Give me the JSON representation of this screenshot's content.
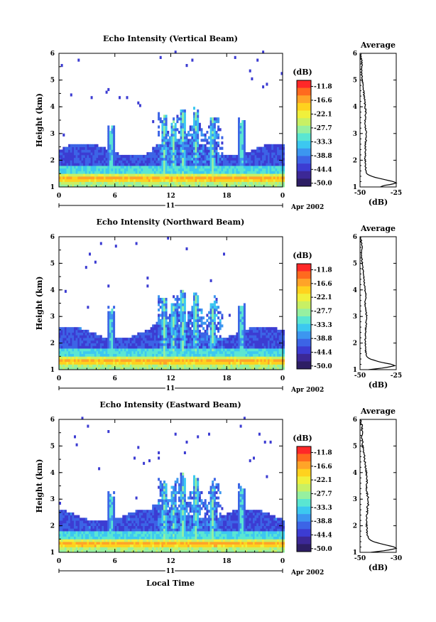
{
  "figure": {
    "xlabel": "Local Time",
    "date_label": "Apr 2002",
    "day_label": "11"
  },
  "chart_data": [
    {
      "type": "heatmap",
      "title": "Echo Intensity (Vertical Beam)",
      "ylabel": "Height (km)",
      "xlim": [
        0,
        24
      ],
      "ylim": [
        1,
        6
      ],
      "x_ticks": [
        "0",
        "6",
        "12",
        "18",
        "0"
      ],
      "x_tick_values": [
        0,
        6,
        12,
        18,
        24
      ],
      "y_ticks": [
        "1",
        "2",
        "3",
        "4",
        "5",
        "6"
      ],
      "profile": {
        "title": "Average",
        "xlabel": "(dB)",
        "xlim": [
          -50,
          -25
        ],
        "x_ticks": [
          "-50",
          "-25"
        ],
        "height_km": [
          1.0,
          1.05,
          1.1,
          1.15,
          1.2,
          1.25,
          1.3,
          1.35,
          1.4,
          1.45,
          1.5,
          1.6,
          1.8,
          2.0,
          2.3,
          2.6,
          2.8,
          3.0,
          3.2,
          3.5,
          3.8,
          4.2,
          4.6,
          5.0,
          5.3,
          5.6,
          6.0
        ],
        "avg_db": [
          -36,
          -34,
          -28,
          -25,
          -27,
          -31,
          -35,
          -39,
          -42,
          -44,
          -45.5,
          -46,
          -46.2,
          -46.5,
          -46.4,
          -46.3,
          -45.8,
          -45.5,
          -46.2,
          -46.6,
          -46.0,
          -46.8,
          -47.5,
          -48.5,
          -49,
          -48.6,
          -49.5
        ]
      }
    },
    {
      "type": "heatmap",
      "title": "Echo Intensity (Northward Beam)",
      "ylabel": "Height (km)",
      "xlim": [
        0,
        24
      ],
      "ylim": [
        1,
        6
      ],
      "x_ticks": [
        "0",
        "6",
        "12",
        "18",
        "0"
      ],
      "x_tick_values": [
        0,
        6,
        12,
        18,
        24
      ],
      "y_ticks": [
        "1",
        "2",
        "3",
        "4",
        "5",
        "6"
      ],
      "profile": {
        "title": "Average",
        "xlabel": "(dB)",
        "xlim": [
          -50,
          -25
        ],
        "x_ticks": [
          "-50",
          "-25"
        ],
        "height_km": [
          1.0,
          1.05,
          1.1,
          1.15,
          1.2,
          1.25,
          1.3,
          1.35,
          1.4,
          1.45,
          1.5,
          1.6,
          1.8,
          2.0,
          2.3,
          2.6,
          2.8,
          3.0,
          3.2,
          3.5,
          3.8,
          4.2,
          4.6,
          5.0,
          5.3,
          5.6,
          6.0
        ],
        "avg_db": [
          -44,
          -36,
          -30,
          -26,
          -28,
          -33,
          -37,
          -40,
          -43,
          -44.5,
          -45.5,
          -46,
          -46.2,
          -46.4,
          -46.2,
          -46.0,
          -45.7,
          -45.4,
          -46.0,
          -46.5,
          -46.0,
          -46.9,
          -47.6,
          -48.5,
          -49,
          -48.8,
          -49.5
        ]
      }
    },
    {
      "type": "heatmap",
      "title": "Echo Intensity (Eastward Beam)",
      "ylabel": "Height (km)",
      "xlim": [
        0,
        24
      ],
      "ylim": [
        1,
        6
      ],
      "x_ticks": [
        "0",
        "6",
        "12",
        "18",
        "0"
      ],
      "x_tick_values": [
        0,
        6,
        12,
        18,
        24
      ],
      "y_ticks": [
        "1",
        "2",
        "3",
        "4",
        "5",
        "6"
      ],
      "profile": {
        "title": "Average",
        "xlabel": "(dB)",
        "xlim": [
          -50,
          -30
        ],
        "x_ticks": [
          "-50",
          "-30"
        ],
        "height_km": [
          1.0,
          1.05,
          1.1,
          1.15,
          1.2,
          1.25,
          1.3,
          1.35,
          1.4,
          1.45,
          1.5,
          1.6,
          1.8,
          2.0,
          2.3,
          2.6,
          2.8,
          3.0,
          3.2,
          3.5,
          3.8,
          4.2,
          4.6,
          5.0,
          5.3,
          5.6,
          6.0
        ],
        "avg_db": [
          -44,
          -38,
          -33,
          -30,
          -31,
          -34,
          -37,
          -40,
          -42.5,
          -44,
          -45,
          -45.8,
          -46.2,
          -46.4,
          -46.2,
          -46.0,
          -45.6,
          -45.5,
          -46.0,
          -46.4,
          -46.2,
          -46.9,
          -47.6,
          -48.5,
          -49,
          -48.7,
          -49.5
        ]
      }
    }
  ],
  "colorbar": {
    "unit": "(dB)",
    "labels": [
      "-11.8",
      "-16.6",
      "-22.1",
      "-27.7",
      "-33.3",
      "-38.8",
      "-44.4",
      "-50.0"
    ],
    "colors": [
      "#ff2828",
      "#ff6a1e",
      "#ffa428",
      "#ffd21e",
      "#f0f03c",
      "#c8f064",
      "#96f0a0",
      "#5ae6d2",
      "#3cc8f0",
      "#3c96f0",
      "#3c64e6",
      "#3c3cd2",
      "#3c2896",
      "#2d1e64"
    ]
  }
}
